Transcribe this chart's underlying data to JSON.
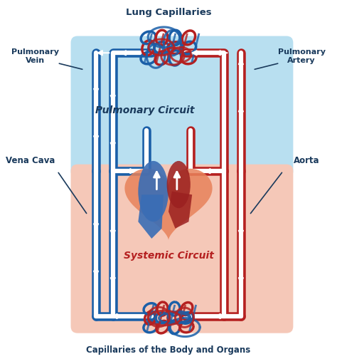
{
  "bg_color": "#ffffff",
  "pulmonary_bg": "#b8dff0",
  "systemic_bg": "#f5c8b8",
  "blue_color": "#1a5fa8",
  "red_color": "#b52020",
  "dark_teal": "#1a3a5c",
  "white": "#ffffff",
  "labels": {
    "lung_cap": "Lung Capillaries",
    "pulm_vein": "Pulmonary\nVein",
    "pulm_artery": "Pulmonary\nArtery",
    "pulm_circuit": "Pulmonary Circuit",
    "vena_cava": "Vena Cava",
    "aorta": "Aorta",
    "sys_circuit": "Systemic Circuit",
    "body_cap": "Capillaries of the Body and Organs"
  },
  "figsize": [
    4.74,
    5.04
  ],
  "dpi": 100
}
